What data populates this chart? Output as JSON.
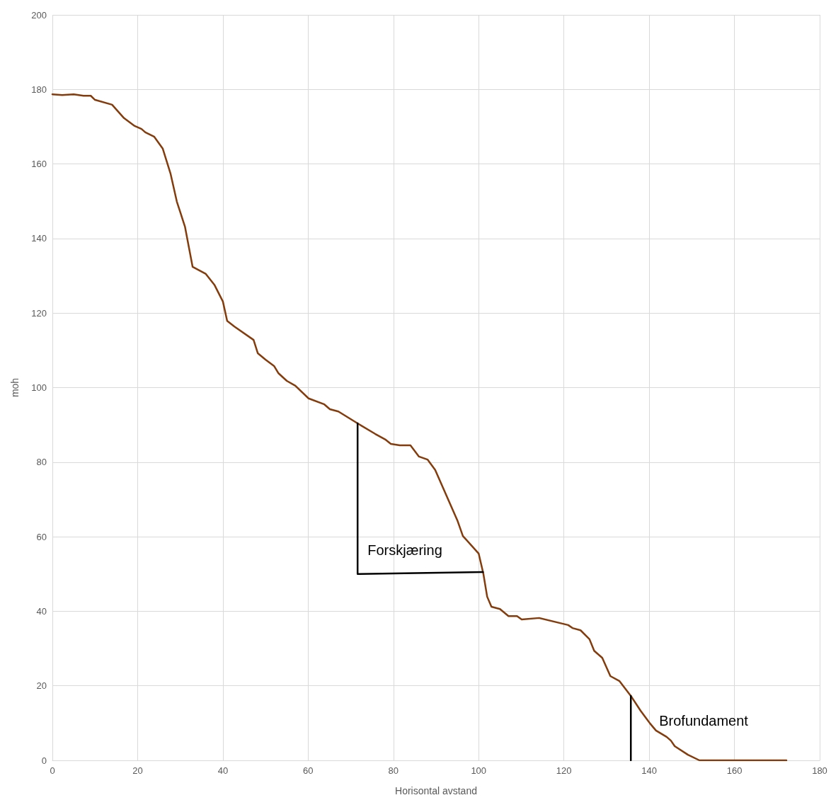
{
  "chart_data": {
    "type": "line",
    "xlabel": "Horisontal avstand",
    "ylabel": "moh",
    "xlim": [
      0,
      180
    ],
    "xticks": [
      0,
      20,
      40,
      60,
      80,
      100,
      120,
      140,
      160,
      180
    ],
    "ylim": [
      0,
      200
    ],
    "yticks": [
      0,
      20,
      40,
      60,
      80,
      100,
      120,
      140,
      160,
      180,
      200
    ],
    "grid": true,
    "marker": "none",
    "line_style": "solid",
    "series": [
      {
        "color": "#843c0c",
        "x": [
          0,
          2.3,
          5,
          7.3,
          9,
          10,
          14,
          16.8,
          19.3,
          20.9,
          21.8,
          23.9,
          25.9,
          27.7,
          29.2,
          31.1,
          32.9,
          36,
          38,
          40,
          41,
          42.7,
          47.2,
          48.2,
          50,
          52,
          53,
          55,
          57,
          60.1,
          63.8,
          65.1,
          67.1,
          71.6,
          75.7,
          78.2,
          79.4,
          81.5,
          84,
          86,
          88,
          89.8,
          95,
          96.3,
          100,
          101.1,
          102,
          103,
          105,
          107,
          109,
          110.1,
          114.2,
          121,
          122,
          123.9,
          126,
          127.1,
          129,
          130.9,
          133,
          135.7,
          138,
          140.2,
          141.6,
          144.1,
          145.1,
          146,
          149.1,
          151.8,
          172.2
        ],
        "values": [
          178.7,
          178.5,
          178.7,
          178.3,
          178.3,
          177.2,
          175.9,
          172.3,
          170.2,
          169.4,
          168.5,
          167.3,
          164.1,
          157.5,
          149.9,
          143.2,
          132.4,
          130.5,
          127.6,
          123.1,
          117.9,
          116.4,
          112.8,
          109.2,
          107.5,
          105.8,
          103.9,
          101.8,
          100.5,
          97.1,
          95.5,
          94.2,
          93.6,
          90.4,
          87.6,
          86,
          84.9,
          84.5,
          84.5,
          81.5,
          80.7,
          77.9,
          64.4,
          60.2,
          55.5,
          50.1,
          43.9,
          41.2,
          40.6,
          38.7,
          38.7,
          37.8,
          38.2,
          36.3,
          35.5,
          34.9,
          32.5,
          29.4,
          27.5,
          22.6,
          21.3,
          17.3,
          13.3,
          9.9,
          8,
          6.3,
          5.3,
          3.8,
          1.5,
          0,
          0
        ]
      },
      {
        "color": "#000000",
        "x": [
          71.6,
          71.6,
          101
        ],
        "values": [
          90.4,
          50,
          50.5
        ]
      },
      {
        "color": "#000000",
        "x": [
          135.7,
          135.7
        ],
        "values": [
          17.3,
          0
        ]
      }
    ],
    "annotations": [
      "Forskjæring",
      "Brofundament"
    ]
  }
}
